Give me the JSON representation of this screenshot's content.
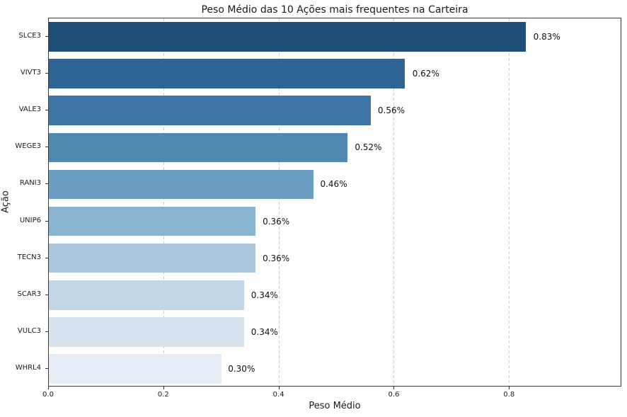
{
  "chart_data": {
    "type": "bar",
    "orientation": "horizontal",
    "title": "Peso Médio das 10 Ações mais frequentes na Carteira",
    "xlabel": "Peso Médio",
    "ylabel": "Ação",
    "categories": [
      "SLCE3",
      "VIVT3",
      "VALE3",
      "WEGE3",
      "RANI3",
      "UNIP6",
      "TECN3",
      "SCAR3",
      "VULC3",
      "WHRL4"
    ],
    "values": [
      0.83,
      0.62,
      0.56,
      0.52,
      0.46,
      0.36,
      0.36,
      0.34,
      0.34,
      0.3
    ],
    "value_labels": [
      "0.83%",
      "0.62%",
      "0.56%",
      "0.52%",
      "0.46%",
      "0.36%",
      "0.36%",
      "0.34%",
      "0.34%",
      "0.30%"
    ],
    "bar_colors": [
      "#1d4e79",
      "#2e6396",
      "#3e76a7",
      "#4f88b1",
      "#699ec1",
      "#89b4d0",
      "#a9c6dc",
      "#c2d6e8",
      "#d7e2ef",
      "#e6edf6"
    ],
    "xlim": [
      0,
      0.995
    ],
    "xticks": [
      0.0,
      0.2,
      0.4,
      0.6,
      0.8
    ],
    "xtick_labels": [
      "0.0",
      "0.2",
      "0.4",
      "0.6",
      "0.8"
    ],
    "grid": true,
    "grid_axis": "x",
    "grid_style": "dashed",
    "legend": "none",
    "colors": {
      "grid": "#cccccc",
      "spine": "#3a3a3a",
      "text": "#1a1a1a",
      "background": "#ffffff"
    }
  }
}
